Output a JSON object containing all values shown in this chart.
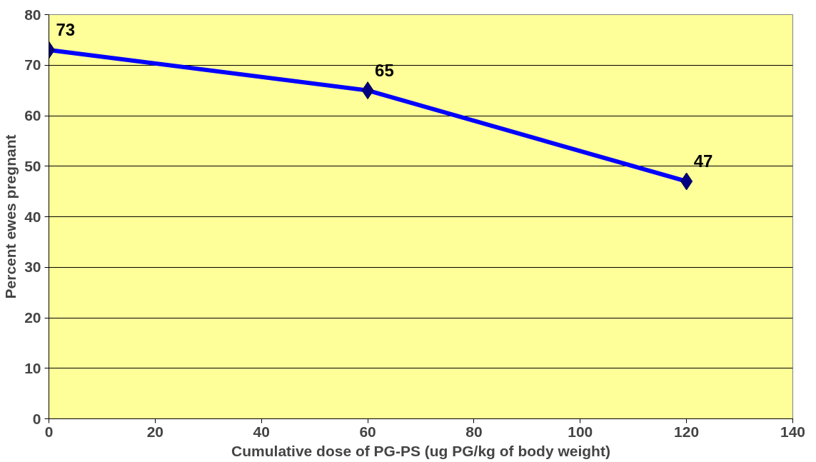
{
  "chart_data": {
    "type": "line",
    "xlabel": "Cumulative dose of PG-PS (ug PG/kg of body weight)",
    "ylabel": "Percent ewes pregnant",
    "x": [
      0,
      60,
      120
    ],
    "series": [
      {
        "color": "#0000ff",
        "values": [
          73,
          65,
          47
        ]
      }
    ],
    "xlim": [
      0,
      140
    ],
    "xticks": [
      0,
      20,
      40,
      60,
      80,
      100,
      120,
      140
    ],
    "ylim": [
      0,
      80
    ],
    "yticks": [
      0,
      10,
      20,
      30,
      40,
      50,
      60,
      70,
      80
    ],
    "grid": "y",
    "marker": "diamond",
    "line_style": "solid",
    "data_labels": true
  }
}
